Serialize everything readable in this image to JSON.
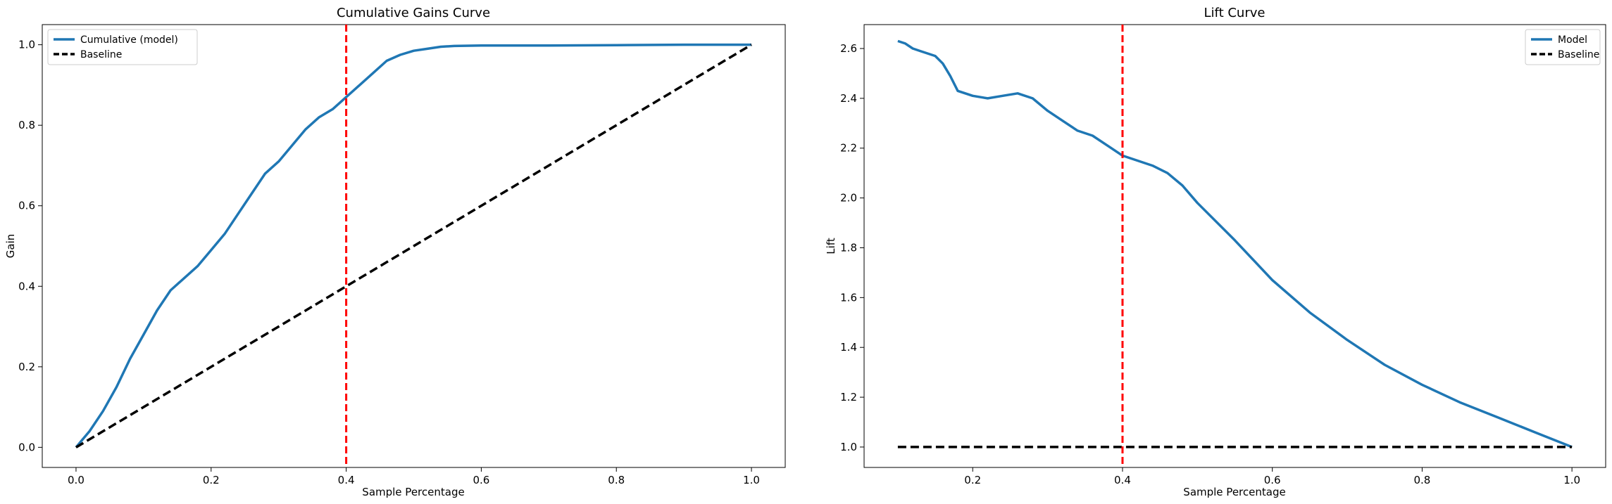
{
  "chart_data": [
    {
      "type": "line",
      "title": "Cumulative Gains Curve",
      "xlabel": "Sample Percentage",
      "ylabel": "Gain",
      "xlim": [
        -0.05,
        1.05
      ],
      "ylim": [
        -0.05,
        1.05
      ],
      "x_ticks": [
        "0.0",
        "0.2",
        "0.4",
        "0.6",
        "0.8",
        "1.0"
      ],
      "y_ticks": [
        "0.0",
        "0.2",
        "0.4",
        "0.6",
        "0.8",
        "1.0"
      ],
      "grid": false,
      "legend_position": "top-left",
      "vline": {
        "x": 0.4,
        "color": "#ff0000",
        "style": "dashed"
      },
      "series": [
        {
          "name": "Cumulative (model)",
          "color": "#1f77b4",
          "style": "solid",
          "x": [
            0.0,
            0.01,
            0.02,
            0.04,
            0.06,
            0.08,
            0.1,
            0.12,
            0.14,
            0.16,
            0.18,
            0.2,
            0.22,
            0.24,
            0.26,
            0.28,
            0.3,
            0.32,
            0.34,
            0.36,
            0.38,
            0.4,
            0.42,
            0.44,
            0.46,
            0.48,
            0.5,
            0.52,
            0.54,
            0.56,
            0.6,
            0.7,
            0.8,
            0.9,
            1.0
          ],
          "y": [
            0.0,
            0.02,
            0.04,
            0.09,
            0.15,
            0.22,
            0.28,
            0.34,
            0.39,
            0.42,
            0.45,
            0.49,
            0.53,
            0.58,
            0.63,
            0.68,
            0.71,
            0.75,
            0.79,
            0.82,
            0.84,
            0.87,
            0.9,
            0.93,
            0.96,
            0.975,
            0.985,
            0.99,
            0.995,
            0.997,
            0.998,
            0.998,
            0.999,
            1.0,
            1.0
          ]
        },
        {
          "name": "Baseline",
          "color": "#000000",
          "style": "dashed",
          "x": [
            0.0,
            1.0
          ],
          "y": [
            0.0,
            1.0
          ]
        }
      ]
    },
    {
      "type": "line",
      "title": "Lift Curve",
      "xlabel": "Sample Percentage",
      "ylabel": "Lift",
      "xlim": [
        0.055,
        1.045
      ],
      "ylim": [
        0.918,
        2.696
      ],
      "x_ticks": [
        "0.2",
        "0.4",
        "0.6",
        "0.8",
        "1.0"
      ],
      "y_ticks": [
        "1.0",
        "1.2",
        "1.4",
        "1.6",
        "1.8",
        "2.0",
        "2.2",
        "2.4",
        "2.6"
      ],
      "grid": false,
      "legend_position": "top-right",
      "vline": {
        "x": 0.4,
        "color": "#ff0000",
        "style": "dashed"
      },
      "series": [
        {
          "name": "Model",
          "color": "#1f77b4",
          "style": "solid",
          "x": [
            0.1,
            0.11,
            0.12,
            0.13,
            0.14,
            0.15,
            0.16,
            0.17,
            0.18,
            0.19,
            0.2,
            0.22,
            0.24,
            0.26,
            0.28,
            0.3,
            0.32,
            0.34,
            0.36,
            0.38,
            0.4,
            0.42,
            0.44,
            0.46,
            0.48,
            0.5,
            0.55,
            0.6,
            0.65,
            0.7,
            0.75,
            0.8,
            0.85,
            0.9,
            0.95,
            1.0
          ],
          "y": [
            2.63,
            2.62,
            2.6,
            2.59,
            2.58,
            2.57,
            2.54,
            2.49,
            2.43,
            2.42,
            2.41,
            2.4,
            2.41,
            2.42,
            2.4,
            2.35,
            2.31,
            2.27,
            2.25,
            2.21,
            2.17,
            2.15,
            2.13,
            2.1,
            2.05,
            1.98,
            1.83,
            1.67,
            1.54,
            1.43,
            1.33,
            1.25,
            1.18,
            1.12,
            1.06,
            1.0
          ]
        },
        {
          "name": "Baseline",
          "color": "#000000",
          "style": "dashed",
          "x": [
            0.1,
            1.0
          ],
          "y": [
            1.0,
            1.0
          ]
        }
      ]
    }
  ]
}
